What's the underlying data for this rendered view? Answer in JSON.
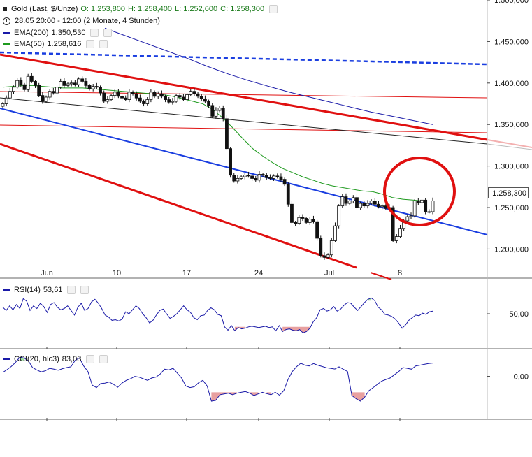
{
  "header": {
    "instrument": "Gold (Last, $/Unze)",
    "open": "O: 1.253,800",
    "high": "H: 1.258,400",
    "low": "L: 1.252,600",
    "close": "C: 1.258,300",
    "period": "28.05 20:00 - 12:00 (2 Monate, 4 Stunden)",
    "ema200_label": "EMA(200)",
    "ema200_value": "1.350,530",
    "ema50_label": "EMA(50)",
    "ema50_value": "1.258,616",
    "rsi_label": "RSI(14)",
    "rsi_value": "53,61",
    "cci_label": "CCI(20, hlc3)",
    "cci_value": "83,03",
    "last_price_box": "1.258,300"
  },
  "colors": {
    "ema200": "#1a1aa8",
    "ema50": "#1f9a1f",
    "trend_red": "#e01010",
    "trend_blue": "#1a3ee0",
    "trend_black": "#222222",
    "oversold_fill": "#e8a0a0",
    "overbought_fill": "#a0e0a0",
    "circle": "#e01010",
    "indicator_line": "#1a1aa8"
  },
  "chart_data": [
    {
      "type": "candlestick",
      "title": "Gold (Last, $/Unze)",
      "x_tick_labels": [
        "Jun",
        "10",
        "17",
        "24",
        "Jul",
        "8"
      ],
      "y_tick_labels": [
        "1.500,000",
        "1.450,000",
        "1.400,000",
        "1.350,000",
        "1.300,000",
        "1.250,000",
        "1.200,000"
      ],
      "ylim": [
        1165,
        1500
      ],
      "last_price": 1258.3,
      "close": [
        1375,
        1382,
        1390,
        1395,
        1403,
        1398,
        1392,
        1408,
        1402,
        1397,
        1385,
        1378,
        1383,
        1390,
        1388,
        1395,
        1402,
        1397,
        1399,
        1400,
        1398,
        1405,
        1402,
        1397,
        1393,
        1396,
        1395,
        1388,
        1378,
        1380,
        1385,
        1389,
        1384,
        1382,
        1380,
        1389,
        1387,
        1382,
        1378,
        1375,
        1380,
        1389,
        1384,
        1387,
        1384,
        1380,
        1377,
        1378,
        1385,
        1383,
        1380,
        1386,
        1390,
        1387,
        1384,
        1381,
        1378,
        1373,
        1360,
        1367,
        1370,
        1357,
        1321,
        1289,
        1282,
        1285,
        1287,
        1289,
        1288,
        1285,
        1283,
        1290,
        1289,
        1286,
        1285,
        1288,
        1287,
        1284,
        1278,
        1254,
        1232,
        1231,
        1238,
        1237,
        1232,
        1236,
        1233,
        1213,
        1192,
        1190,
        1193,
        1210,
        1228,
        1252,
        1263,
        1255,
        1258,
        1262,
        1250,
        1255,
        1252,
        1255,
        1258,
        1254,
        1251,
        1252,
        1249,
        1250,
        1210,
        1215,
        1225,
        1234,
        1239,
        1240,
        1258,
        1256,
        1259,
        1245,
        1245,
        1258
      ],
      "series": [
        {
          "name": "EMA(200)",
          "values": [
            1466,
            1457,
            1448,
            1439,
            1430,
            1420,
            1411,
            1403,
            1396,
            1389,
            1383,
            1377,
            1371,
            1365,
            1360,
            1355,
            1350
          ]
        },
        {
          "name": "EMA(50)",
          "values": [
            1395,
            1396,
            1397,
            1397,
            1396,
            1395,
            1394,
            1394,
            1394,
            1393,
            1392,
            1391,
            1390,
            1389,
            1388,
            1387,
            1386,
            1384,
            1381,
            1378,
            1375,
            1368,
            1358,
            1346,
            1333,
            1321,
            1312,
            1304,
            1297,
            1292,
            1287,
            1283,
            1279,
            1276,
            1274,
            1272,
            1270,
            1269,
            1266,
            1262,
            1260,
            1259,
            1258,
            1258
          ]
        }
      ]
    },
    {
      "type": "line",
      "title": "RSI(14)",
      "y_tick_labels": [
        "50,00"
      ],
      "ylim": [
        0,
        100
      ],
      "values": [
        60,
        55,
        62,
        56,
        64,
        58,
        73,
        69,
        55,
        62,
        58,
        66,
        61,
        52,
        64,
        67,
        60,
        56,
        58,
        62,
        55,
        48,
        60,
        66,
        55,
        58,
        68,
        72,
        66,
        58,
        48,
        45,
        40,
        41,
        39,
        42,
        53,
        50,
        56,
        62,
        58,
        50,
        44,
        36,
        40,
        48,
        55,
        57,
        50,
        43,
        46,
        50,
        56,
        62,
        56,
        52,
        44,
        41,
        47,
        48,
        55,
        59,
        56,
        49,
        47,
        30,
        25,
        32,
        24,
        29,
        27,
        28,
        30,
        31,
        30,
        29,
        30,
        31,
        29,
        30,
        24,
        32,
        23,
        26,
        27,
        25,
        24,
        26,
        21,
        23,
        28,
        38,
        44,
        56,
        58,
        54,
        56,
        61,
        54,
        57,
        63,
        67,
        66,
        60,
        55,
        61,
        67,
        72,
        74,
        70,
        60,
        56,
        49,
        48,
        46,
        42,
        36,
        28,
        33,
        40,
        44,
        48,
        47,
        51,
        49,
        53,
        54
      ]
    },
    {
      "type": "line",
      "title": "CCI(20, hlc3)",
      "y_tick_labels": [
        "0,00"
      ],
      "ylim": [
        -260,
        160
      ],
      "values": [
        25,
        42,
        62,
        88,
        120,
        115,
        98,
        55,
        40,
        28,
        35,
        50,
        45,
        38,
        48,
        55,
        60,
        100,
        116,
        65,
        30,
        -55,
        -70,
        -45,
        -42,
        -35,
        -50,
        -68,
        -42,
        -25,
        -15,
        0,
        -5,
        -15,
        -25,
        -10,
        -5,
        15,
        45,
        40,
        50,
        20,
        -10,
        -60,
        -70,
        -65,
        -40,
        -25,
        -60,
        -155,
        -150,
        -115,
        -110,
        -105,
        -115,
        -105,
        -100,
        -95,
        -105,
        -120,
        -110,
        -100,
        -108,
        -115,
        -100,
        -118,
        -90,
        -20,
        30,
        60,
        82,
        70,
        65,
        80,
        70,
        62,
        54,
        50,
        46,
        60,
        44,
        30,
        -120,
        -140,
        -155,
        -130,
        -90,
        -70,
        -50,
        -30,
        -20,
        -10,
        10,
        30,
        55,
        50,
        45,
        65,
        70,
        75,
        80,
        83
      ]
    }
  ]
}
